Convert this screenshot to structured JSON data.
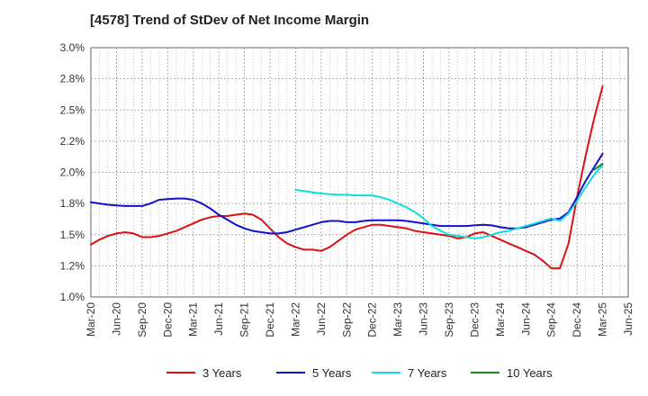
{
  "chart_data": {
    "type": "line",
    "title": "[4578]  Trend of StDev of Net Income Margin",
    "xlabel": "",
    "ylabel": "",
    "x_ticks": [
      "Mar-20",
      "Jun-20",
      "Sep-20",
      "Dec-20",
      "Mar-21",
      "Jun-21",
      "Sep-21",
      "Dec-21",
      "Mar-22",
      "Jun-22",
      "Sep-22",
      "Dec-22",
      "Mar-23",
      "Jun-23",
      "Sep-23",
      "Dec-23",
      "Mar-24",
      "Jun-24",
      "Sep-24",
      "Dec-24",
      "Mar-25",
      "Jun-25"
    ],
    "y_ticks": [
      "1.0%",
      "1.2%",
      "1.5%",
      "1.8%",
      "2.0%",
      "2.2%",
      "2.5%",
      "2.8%",
      "3.0%"
    ],
    "ylim": [
      1.0,
      3.0
    ],
    "grid": true,
    "legend_position": "bottom",
    "series": [
      {
        "name": "3 Years",
        "color": "#dd1111",
        "x": [
          "Mar-20",
          "Apr-20",
          "May-20",
          "Jun-20",
          "Jul-20",
          "Aug-20",
          "Sep-20",
          "Oct-20",
          "Nov-20",
          "Dec-20",
          "Jan-21",
          "Feb-21",
          "Mar-21",
          "Apr-21",
          "May-21",
          "Jun-21",
          "Jul-21",
          "Aug-21",
          "Sep-21",
          "Oct-21",
          "Nov-21",
          "Dec-21",
          "Jan-22",
          "Feb-22",
          "Mar-22",
          "Apr-22",
          "May-22",
          "Jun-22",
          "Jul-22",
          "Aug-22",
          "Sep-22",
          "Oct-22",
          "Nov-22",
          "Dec-22",
          "Jan-23",
          "Feb-23",
          "Mar-23",
          "Apr-23",
          "May-23",
          "Jun-23",
          "Jul-23",
          "Aug-23",
          "Sep-23",
          "Oct-23",
          "Nov-23",
          "Dec-23",
          "Jan-24",
          "Feb-24",
          "Mar-24",
          "Apr-24",
          "May-24",
          "Jun-24",
          "Jul-24",
          "Aug-24",
          "Sep-24",
          "Oct-24",
          "Nov-24",
          "Dec-24",
          "Jan-25",
          "Feb-25",
          "Mar-25"
        ],
        "values": [
          1.42,
          1.46,
          1.49,
          1.51,
          1.52,
          1.51,
          1.48,
          1.48,
          1.49,
          1.51,
          1.53,
          1.56,
          1.59,
          1.62,
          1.64,
          1.65,
          1.65,
          1.66,
          1.67,
          1.66,
          1.62,
          1.55,
          1.48,
          1.43,
          1.4,
          1.38,
          1.38,
          1.37,
          1.4,
          1.45,
          1.5,
          1.54,
          1.56,
          1.58,
          1.58,
          1.57,
          1.56,
          1.55,
          1.53,
          1.52,
          1.51,
          1.5,
          1.49,
          1.47,
          1.48,
          1.51,
          1.52,
          1.49,
          1.46,
          1.43,
          1.4,
          1.37,
          1.34,
          1.29,
          1.23,
          1.23,
          1.43,
          1.8,
          2.13,
          2.43,
          2.69
        ]
      },
      {
        "name": "5 Years",
        "color": "#1111cc",
        "x": [
          "Mar-20",
          "Apr-20",
          "May-20",
          "Jun-20",
          "Jul-20",
          "Aug-20",
          "Sep-20",
          "Oct-20",
          "Nov-20",
          "Dec-20",
          "Jan-21",
          "Feb-21",
          "Mar-21",
          "Apr-21",
          "May-21",
          "Jun-21",
          "Jul-21",
          "Aug-21",
          "Sep-21",
          "Oct-21",
          "Nov-21",
          "Dec-21",
          "Jan-22",
          "Feb-22",
          "Mar-22",
          "Apr-22",
          "May-22",
          "Jun-22",
          "Jul-22",
          "Aug-22",
          "Sep-22",
          "Oct-22",
          "Nov-22",
          "Dec-22",
          "Jan-23",
          "Feb-23",
          "Mar-23",
          "Apr-23",
          "May-23",
          "Jun-23",
          "Jul-23",
          "Aug-23",
          "Sep-23",
          "Oct-23",
          "Nov-23",
          "Dec-23",
          "Jan-24",
          "Feb-24",
          "Mar-24",
          "Apr-24",
          "May-24",
          "Jun-24",
          "Jul-24",
          "Aug-24",
          "Sep-24",
          "Oct-24",
          "Nov-24",
          "Dec-24",
          "Jan-25",
          "Feb-25",
          "Mar-25"
        ],
        "values": [
          1.76,
          1.75,
          1.74,
          1.735,
          1.73,
          1.73,
          1.73,
          1.75,
          1.78,
          1.785,
          1.79,
          1.79,
          1.78,
          1.75,
          1.71,
          1.66,
          1.62,
          1.58,
          1.55,
          1.53,
          1.52,
          1.51,
          1.51,
          1.52,
          1.54,
          1.56,
          1.58,
          1.6,
          1.61,
          1.61,
          1.6,
          1.6,
          1.61,
          1.615,
          1.615,
          1.615,
          1.615,
          1.61,
          1.6,
          1.59,
          1.58,
          1.57,
          1.57,
          1.57,
          1.57,
          1.575,
          1.58,
          1.575,
          1.56,
          1.55,
          1.55,
          1.56,
          1.58,
          1.6,
          1.62,
          1.63,
          1.68,
          1.8,
          1.93,
          2.04,
          2.15
        ]
      },
      {
        "name": "7 Years",
        "color": "#11dddd",
        "x": [
          "Mar-22",
          "Apr-22",
          "May-22",
          "Jun-22",
          "Jul-22",
          "Aug-22",
          "Sep-22",
          "Oct-22",
          "Nov-22",
          "Dec-22",
          "Jan-23",
          "Feb-23",
          "Mar-23",
          "Apr-23",
          "May-23",
          "Jun-23",
          "Jul-23",
          "Aug-23",
          "Sep-23",
          "Oct-23",
          "Nov-23",
          "Dec-23",
          "Jan-24",
          "Feb-24",
          "Mar-24",
          "Apr-24",
          "May-24",
          "Jun-24",
          "Jul-24",
          "Aug-24",
          "Sep-24",
          "Oct-24",
          "Nov-24",
          "Dec-24",
          "Jan-25",
          "Feb-25",
          "Mar-25"
        ],
        "values": [
          1.86,
          1.85,
          1.84,
          1.83,
          1.825,
          1.82,
          1.82,
          1.815,
          1.815,
          1.815,
          1.8,
          1.78,
          1.75,
          1.72,
          1.68,
          1.63,
          1.57,
          1.53,
          1.5,
          1.49,
          1.48,
          1.47,
          1.48,
          1.5,
          1.52,
          1.53,
          1.55,
          1.57,
          1.59,
          1.61,
          1.63,
          1.61,
          1.67,
          1.77,
          1.88,
          1.98,
          2.06
        ]
      },
      {
        "name": "10 Years",
        "color": "#228822",
        "x": [
          "Feb-25",
          "Mar-25"
        ],
        "values": [
          2.02,
          2.07
        ]
      }
    ]
  }
}
